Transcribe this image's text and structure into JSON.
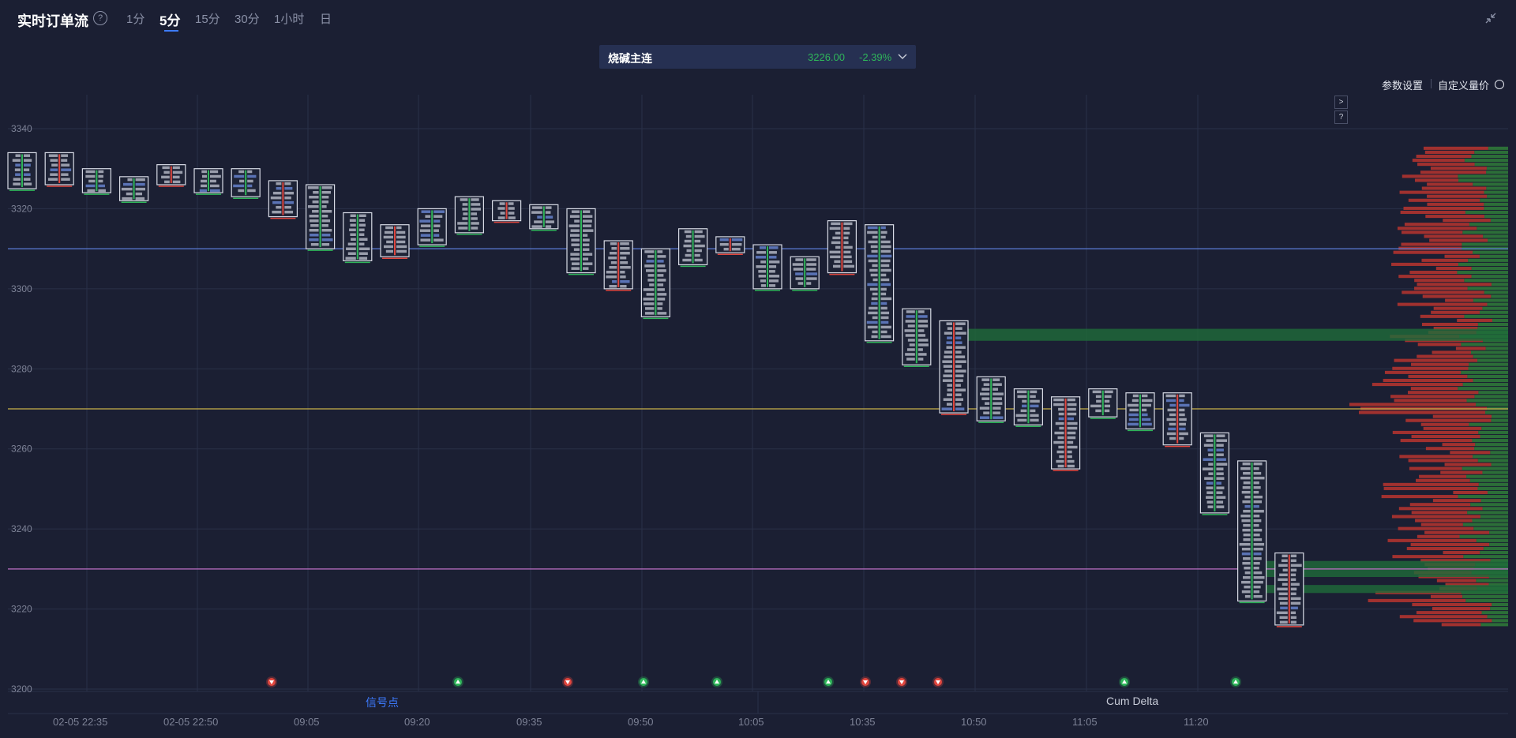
{
  "header": {
    "title": "实时订单流",
    "help_icon": "question-circle-icon",
    "timeframes": [
      "1分",
      "5分",
      "15分",
      "30分",
      "1小时",
      "日"
    ],
    "active_timeframe": "5分",
    "collapse_icon": "collapse-arrows-icon"
  },
  "symbol": {
    "name": "烧碱主连",
    "price": "3226.00",
    "change": "-2.39%",
    "dropdown_icon": "chevron-down-icon"
  },
  "toolbar": {
    "params_label": "参数设置",
    "custom_price_label": "自定义量价",
    "settings_icon": "gear-icon",
    "expand_icon": "chevron-right-icon",
    "help_small": "?"
  },
  "bottom_tabs": {
    "signal": "信号点",
    "cum_delta": "Cum Delta"
  },
  "colors": {
    "background": "#1b1f33",
    "up": "#2fb55a",
    "down": "#e0463e",
    "accent": "#3d7bff",
    "line_blue": "#5b7bd6",
    "line_yellow": "#c8b04a",
    "line_purple": "#c070c8"
  },
  "chart_data": {
    "type": "footprint",
    "ylim": [
      3200,
      3345
    ],
    "y_ticks": [
      "3340",
      "3320",
      "3300",
      "3280",
      "3260",
      "3240",
      "3220",
      "3200"
    ],
    "x_ticks": [
      "02-05 22:35",
      "02-05 22:50",
      "09:05",
      "09:20",
      "09:35",
      "09:50",
      "10:05",
      "10:35",
      "10:50",
      "11:05",
      "11:20"
    ],
    "reference_lines": [
      {
        "price": 3310,
        "color": "#5b7bd6"
      },
      {
        "price": 3270,
        "color": "#c8b04a"
      },
      {
        "price": 3230,
        "color": "#c070c8"
      }
    ],
    "bars": [
      {
        "high": 3334,
        "low": 3325
      },
      {
        "high": 3334,
        "low": 3326
      },
      {
        "high": 3330,
        "low": 3324
      },
      {
        "high": 3328,
        "low": 3322
      },
      {
        "high": 3331,
        "low": 3326
      },
      {
        "high": 3330,
        "low": 3324
      },
      {
        "high": 3330,
        "low": 3323
      },
      {
        "high": 3327,
        "low": 3318
      },
      {
        "high": 3326,
        "low": 3310
      },
      {
        "high": 3319,
        "low": 3307
      },
      {
        "high": 3316,
        "low": 3308
      },
      {
        "high": 3320,
        "low": 3311
      },
      {
        "high": 3323,
        "low": 3314
      },
      {
        "high": 3322,
        "low": 3317
      },
      {
        "high": 3321,
        "low": 3315
      },
      {
        "high": 3320,
        "low": 3304
      },
      {
        "high": 3312,
        "low": 3300
      },
      {
        "high": 3310,
        "low": 3293
      },
      {
        "high": 3315,
        "low": 3306
      },
      {
        "high": 3313,
        "low": 3309
      },
      {
        "high": 3311,
        "low": 3300
      },
      {
        "high": 3308,
        "low": 3300
      },
      {
        "high": 3317,
        "low": 3304
      },
      {
        "high": 3316,
        "low": 3287
      },
      {
        "high": 3295,
        "low": 3281
      },
      {
        "high": 3292,
        "low": 3269
      },
      {
        "high": 3278,
        "low": 3267
      },
      {
        "high": 3275,
        "low": 3266
      },
      {
        "high": 3273,
        "low": 3255
      },
      {
        "high": 3275,
        "low": 3268
      },
      {
        "high": 3274,
        "low": 3265
      },
      {
        "high": 3274,
        "low": 3261
      },
      {
        "high": 3264,
        "low": 3244
      },
      {
        "high": 3257,
        "low": 3222
      },
      {
        "high": 3234,
        "low": 3216
      }
    ],
    "signals": [
      {
        "x_index": 0,
        "type": "down"
      },
      {
        "x_index": 1,
        "type": "up"
      },
      {
        "x_index": 2,
        "type": "down"
      },
      {
        "x_index": 3,
        "type": "up"
      },
      {
        "x_index": 4,
        "type": "up"
      },
      {
        "x_index": 5,
        "type": "up"
      },
      {
        "x_index": 6,
        "type": "down"
      },
      {
        "x_index": 7,
        "type": "down"
      },
      {
        "x_index": 8,
        "type": "down"
      },
      {
        "x_index": 9,
        "type": "up"
      },
      {
        "x_index": 10,
        "type": "up"
      }
    ]
  }
}
